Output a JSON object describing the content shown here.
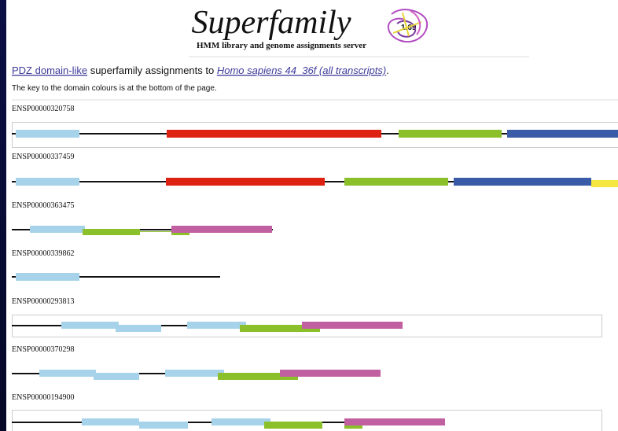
{
  "header": {
    "title": "Superfamily",
    "version": "1.69",
    "subtitle": "HMM library and genome assignments server"
  },
  "intro": {
    "superfamily_link": "PDZ domain-like",
    "text": " superfamily assignments to ",
    "genome_link": "Homo sapiens 44_36f (all transcripts)",
    "end": "."
  },
  "key_note": "The key to the domain colours is at the bottom of the page.",
  "proteins": [
    {
      "id": "ENSP00000320758"
    },
    {
      "id": "ENSP00000337459"
    },
    {
      "id": "ENSP00000363475"
    },
    {
      "id": "ENSP00000339862"
    },
    {
      "id": "ENSP00000293813"
    },
    {
      "id": "ENSP00000370298"
    },
    {
      "id": "ENSP00000194900"
    }
  ]
}
